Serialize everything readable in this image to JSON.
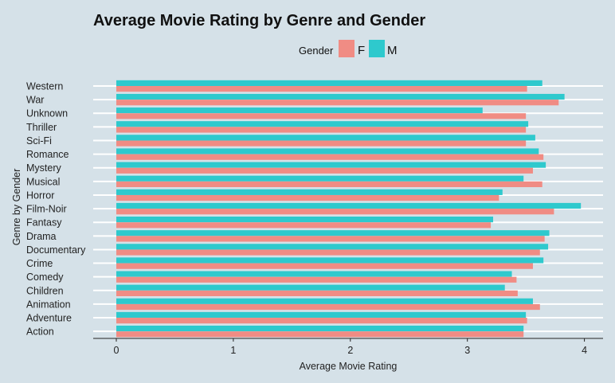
{
  "chart_data": {
    "type": "bar",
    "orientation": "horizontal",
    "title": "Average Movie Rating by Genre and Gender",
    "xlabel": "Average Movie Rating",
    "ylabel": "Genre by Gender",
    "xlim": [
      0,
      4.1
    ],
    "xticks": [
      0,
      1,
      2,
      3,
      4
    ],
    "grid": "horizontal",
    "legend": {
      "title": "Gender",
      "placement": "top",
      "entries": [
        {
          "name": "F",
          "color": "#f08c84"
        },
        {
          "name": "M",
          "color": "#2ec9cd"
        }
      ]
    },
    "categories": [
      "Western",
      "War",
      "Unknown",
      "Thriller",
      "Sci-Fi",
      "Romance",
      "Mystery",
      "Musical",
      "Horror",
      "Film-Noir",
      "Fantasy",
      "Drama",
      "Documentary",
      "Crime",
      "Comedy",
      "Children",
      "Animation",
      "Adventure",
      "Action"
    ],
    "series": [
      {
        "name": "F",
        "color": "#f08c84",
        "values": [
          3.51,
          3.78,
          3.5,
          3.5,
          3.5,
          3.65,
          3.56,
          3.64,
          3.27,
          3.74,
          3.2,
          3.66,
          3.62,
          3.56,
          3.42,
          3.43,
          3.62,
          3.51,
          3.48
        ]
      },
      {
        "name": "M",
        "color": "#2ec9cd",
        "values": [
          3.64,
          3.83,
          3.13,
          3.52,
          3.58,
          3.61,
          3.67,
          3.48,
          3.3,
          3.97,
          3.22,
          3.7,
          3.69,
          3.65,
          3.38,
          3.32,
          3.56,
          3.5,
          3.48
        ]
      }
    ]
  }
}
